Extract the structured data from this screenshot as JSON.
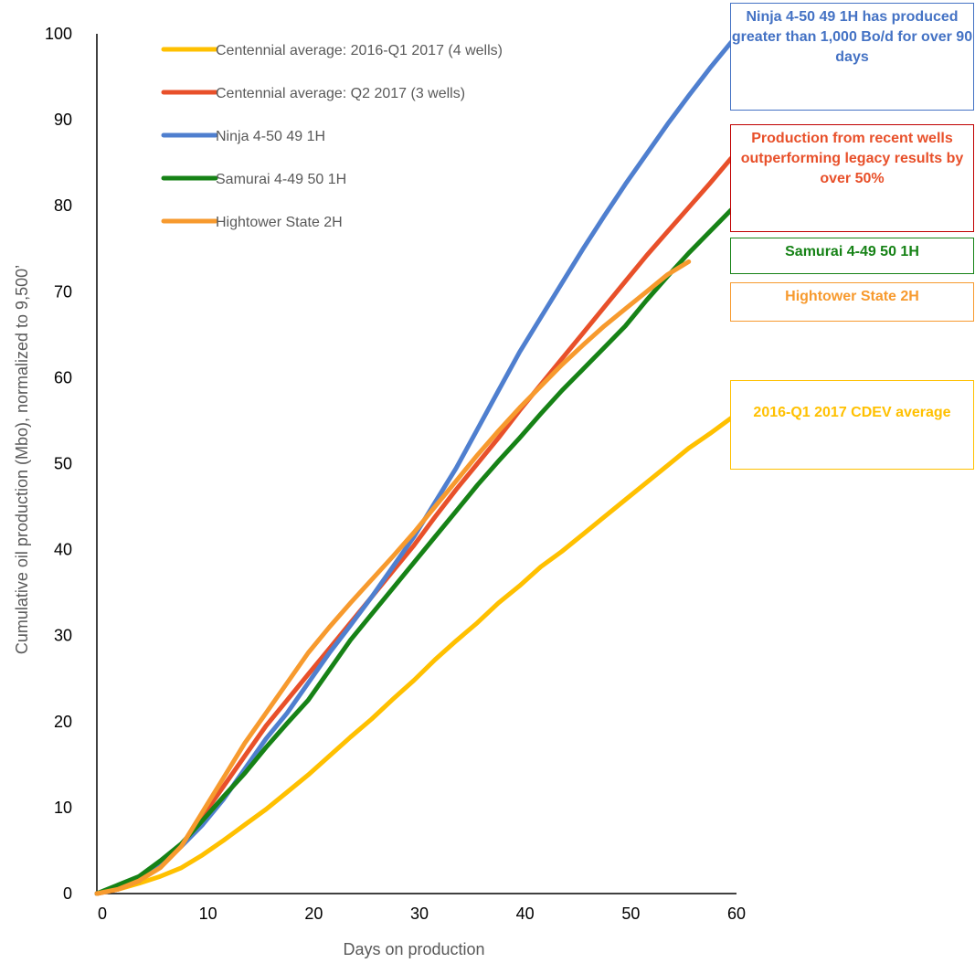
{
  "chart_data": {
    "type": "line",
    "xlabel": "Days on production",
    "ylabel": "Cumulative oil production (Mbo), normalized to 9,500’",
    "xlim": [
      0,
      60
    ],
    "ylim": [
      0,
      100
    ],
    "xticks": [
      0,
      10,
      20,
      30,
      40,
      50,
      60
    ],
    "yticks": [
      0,
      10,
      20,
      30,
      40,
      50,
      60,
      70,
      80,
      90,
      100
    ],
    "grid": false,
    "legend_position": "top-left",
    "series": [
      {
        "name": "Centennial average: 2016-Q1 2017 (4 wells)",
        "color": "#FFC000",
        "points": [
          [
            0,
            0
          ],
          [
            2,
            0.5
          ],
          [
            4,
            1.2
          ],
          [
            6,
            2
          ],
          [
            8,
            3
          ],
          [
            10,
            4.5
          ],
          [
            12,
            6.2
          ],
          [
            14,
            8
          ],
          [
            16,
            9.8
          ],
          [
            18,
            11.8
          ],
          [
            20,
            13.8
          ],
          [
            22,
            16
          ],
          [
            24,
            18.2
          ],
          [
            26,
            20.3
          ],
          [
            28,
            22.6
          ],
          [
            30,
            24.8
          ],
          [
            32,
            27.2
          ],
          [
            34,
            29.4
          ],
          [
            36,
            31.5
          ],
          [
            38,
            33.8
          ],
          [
            40,
            35.8
          ],
          [
            42,
            38
          ],
          [
            44,
            39.8
          ],
          [
            46,
            41.8
          ],
          [
            48,
            43.8
          ],
          [
            50,
            45.8
          ],
          [
            52,
            47.8
          ],
          [
            54,
            49.8
          ],
          [
            56,
            51.8
          ],
          [
            58,
            53.5
          ],
          [
            60,
            55.3
          ]
        ]
      },
      {
        "name": "Centennial average: Q2 2017 (3 wells)",
        "color": "#E8502A",
        "points": [
          [
            0,
            0
          ],
          [
            2,
            0.5
          ],
          [
            4,
            1.5
          ],
          [
            6,
            3.5
          ],
          [
            8,
            5.5
          ],
          [
            10,
            9
          ],
          [
            12,
            12.5
          ],
          [
            14,
            16
          ],
          [
            16,
            19.5
          ],
          [
            18,
            22.5
          ],
          [
            20,
            25.5
          ],
          [
            22,
            28.5
          ],
          [
            24,
            31.5
          ],
          [
            26,
            34.5
          ],
          [
            28,
            37.5
          ],
          [
            30,
            40.5
          ],
          [
            32,
            43.8
          ],
          [
            34,
            47
          ],
          [
            36,
            50
          ],
          [
            38,
            53
          ],
          [
            40,
            56.2
          ],
          [
            42,
            59.2
          ],
          [
            44,
            62.2
          ],
          [
            46,
            65.2
          ],
          [
            48,
            68.2
          ],
          [
            50,
            71.2
          ],
          [
            52,
            74.2
          ],
          [
            54,
            77
          ],
          [
            56,
            79.8
          ],
          [
            58,
            82.6
          ],
          [
            60,
            85.5
          ]
        ]
      },
      {
        "name": "Ninja 4-50 49 1H",
        "color": "#4F7FCF",
        "points": [
          [
            0,
            0
          ],
          [
            2,
            0.6
          ],
          [
            4,
            1.5
          ],
          [
            6,
            3.5
          ],
          [
            8,
            5.5
          ],
          [
            10,
            8
          ],
          [
            12,
            11
          ],
          [
            14,
            14.5
          ],
          [
            16,
            18
          ],
          [
            18,
            21
          ],
          [
            20,
            24.5
          ],
          [
            22,
            28
          ],
          [
            24,
            31.2
          ],
          [
            26,
            34.5
          ],
          [
            28,
            38
          ],
          [
            30,
            41.5
          ],
          [
            32,
            45.5
          ],
          [
            34,
            49.5
          ],
          [
            36,
            54
          ],
          [
            38,
            58.5
          ],
          [
            40,
            63
          ],
          [
            42,
            67
          ],
          [
            44,
            71
          ],
          [
            46,
            75
          ],
          [
            48,
            78.8
          ],
          [
            50,
            82.5
          ],
          [
            52,
            86
          ],
          [
            54,
            89.5
          ],
          [
            56,
            92.8
          ],
          [
            58,
            96
          ],
          [
            60,
            99
          ]
        ]
      },
      {
        "name": "Samurai 4-49 50 1H",
        "color": "#168216",
        "points": [
          [
            0,
            0
          ],
          [
            2,
            1
          ],
          [
            4,
            2
          ],
          [
            6,
            3.8
          ],
          [
            8,
            5.8
          ],
          [
            10,
            8.5
          ],
          [
            12,
            11.3
          ],
          [
            14,
            14
          ],
          [
            16,
            17
          ],
          [
            18,
            19.8
          ],
          [
            20,
            22.5
          ],
          [
            22,
            26
          ],
          [
            24,
            29.5
          ],
          [
            26,
            32.5
          ],
          [
            28,
            35.5
          ],
          [
            30,
            38.5
          ],
          [
            32,
            41.5
          ],
          [
            34,
            44.5
          ],
          [
            36,
            47.5
          ],
          [
            38,
            50.3
          ],
          [
            40,
            53
          ],
          [
            42,
            55.8
          ],
          [
            44,
            58.5
          ],
          [
            46,
            61
          ],
          [
            48,
            63.5
          ],
          [
            50,
            66
          ],
          [
            52,
            69
          ],
          [
            54,
            71.8
          ],
          [
            56,
            74.5
          ],
          [
            58,
            77
          ],
          [
            60,
            79.5
          ]
        ]
      },
      {
        "name": "Hightower State 2H",
        "color": "#F79A2E",
        "points": [
          [
            0,
            0
          ],
          [
            2,
            0.5
          ],
          [
            4,
            1.5
          ],
          [
            6,
            3
          ],
          [
            8,
            5.5
          ],
          [
            10,
            9.5
          ],
          [
            12,
            13.5
          ],
          [
            14,
            17.5
          ],
          [
            16,
            21
          ],
          [
            18,
            24.5
          ],
          [
            20,
            28
          ],
          [
            22,
            31
          ],
          [
            24,
            33.8
          ],
          [
            26,
            36.5
          ],
          [
            28,
            39.2
          ],
          [
            30,
            42
          ],
          [
            32,
            45
          ],
          [
            34,
            48
          ],
          [
            36,
            51
          ],
          [
            38,
            53.8
          ],
          [
            40,
            56.5
          ],
          [
            42,
            59
          ],
          [
            44,
            61.5
          ],
          [
            46,
            63.8
          ],
          [
            48,
            66
          ],
          [
            50,
            68
          ],
          [
            52,
            70
          ],
          [
            54,
            72
          ],
          [
            56,
            73.5
          ]
        ]
      }
    ]
  },
  "callouts": [
    {
      "text": "Ninja 4-50 49 1H has produced greater than 1,000 Bo/d for over 90 days",
      "color": "#4472C4",
      "border": "#4472C4"
    },
    {
      "text": "Production from recent wells outperforming legacy results by over 50%",
      "color": "#E8502A",
      "border": "#C00000"
    },
    {
      "text": "Samurai 4-49 50 1H",
      "color": "#168216",
      "border": "#168216"
    },
    {
      "text": "Hightower State 2H",
      "color": "#F79A2E",
      "border": "#F79A2E"
    },
    {
      "text": "2016-Q1 2017 CDEV average",
      "color": "#FFC000",
      "border": "#FFC000"
    }
  ]
}
